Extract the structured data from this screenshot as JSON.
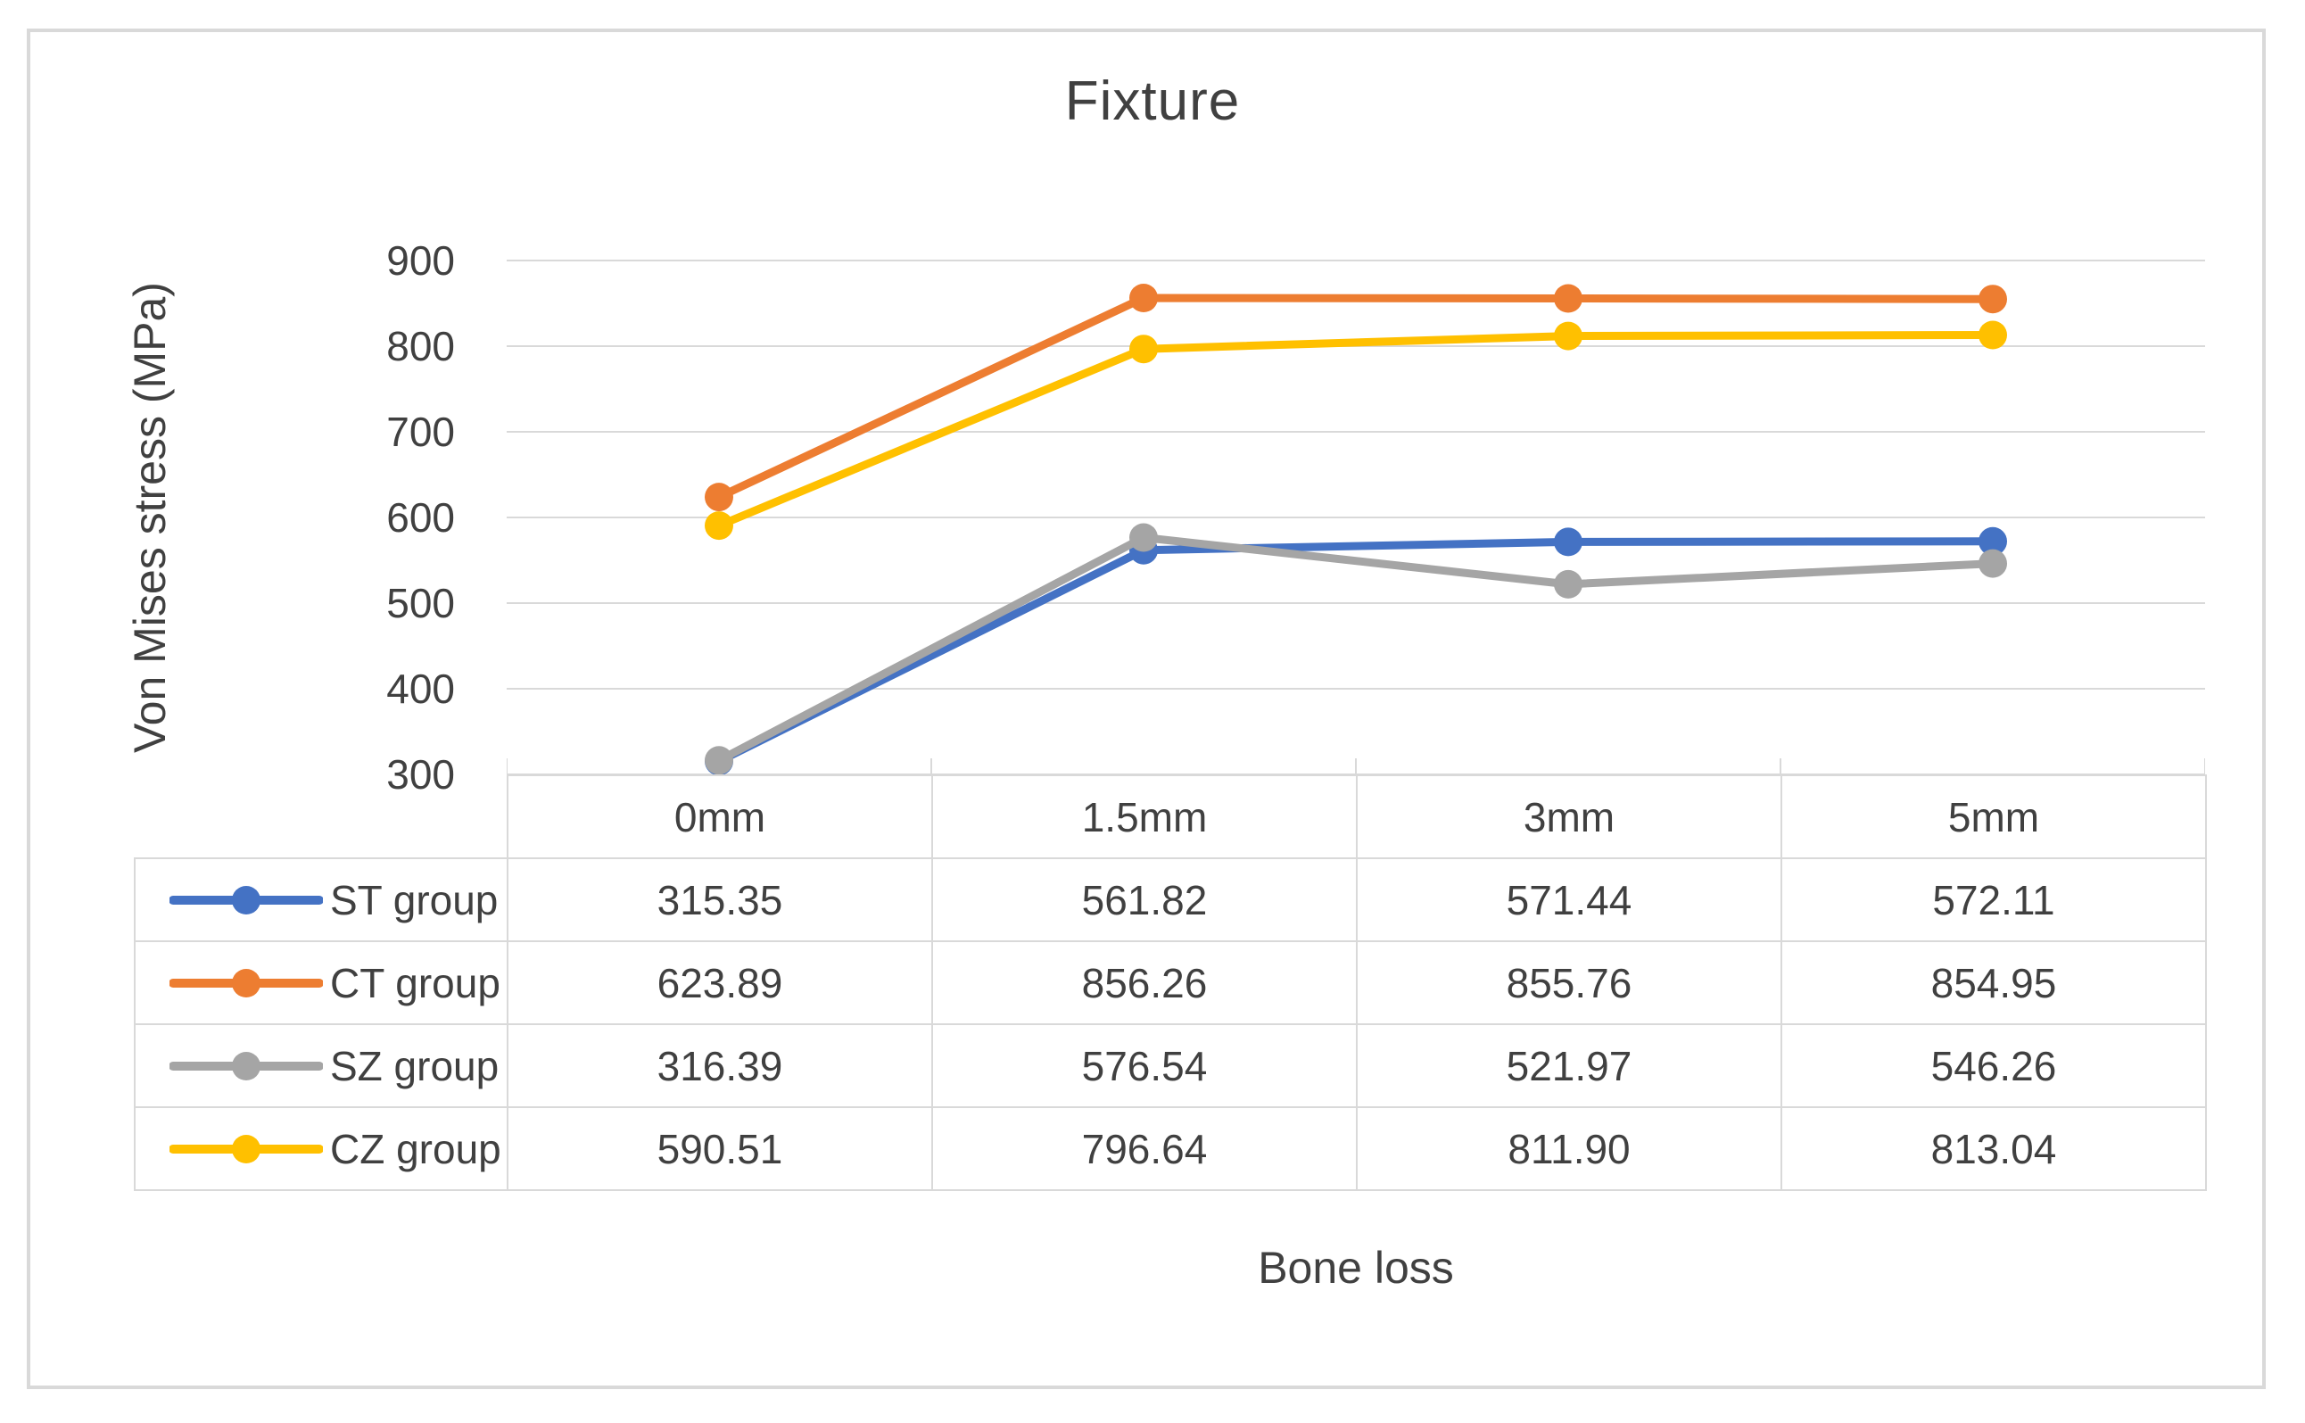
{
  "chart_data": {
    "type": "line",
    "title": "Fixture",
    "xlabel": "Bone loss",
    "ylabel": "Von Mises stress (MPa)",
    "categories": [
      "0mm",
      "1.5mm",
      "3mm",
      "5mm"
    ],
    "series": [
      {
        "name": "ST group",
        "color": "#4472C4",
        "values": [
          315.35,
          561.82,
          571.44,
          572.11
        ]
      },
      {
        "name": "CT group",
        "color": "#ED7D31",
        "values": [
          623.89,
          856.26,
          855.76,
          854.95
        ]
      },
      {
        "name": "SZ group",
        "color": "#A5A5A5",
        "values": [
          316.39,
          576.54,
          521.97,
          546.26
        ]
      },
      {
        "name": "CZ group",
        "color": "#FFC000",
        "values": [
          590.51,
          796.64,
          811.9,
          813.04
        ]
      }
    ],
    "ylim": [
      300,
      900
    ],
    "yticks": [
      300,
      400,
      500,
      600,
      700,
      800,
      900
    ],
    "grid": true,
    "gridline_color": "#d9d9d9",
    "text_color": "#404040",
    "legend_position": "left-of-data-table",
    "marker": "circle"
  }
}
